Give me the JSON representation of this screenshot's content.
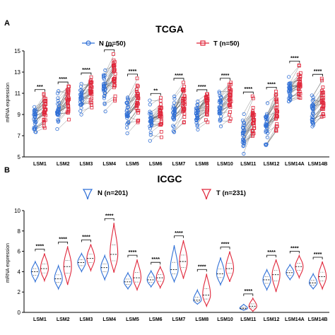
{
  "colors": {
    "normal": "#2f6fd6",
    "tumor": "#e0263a",
    "line": "#333333"
  },
  "chart_data": [
    {
      "type": "paired-scatter",
      "panel": "A",
      "title": "TCGA",
      "ylabel": "mRNA expression",
      "xlabel": "",
      "ylim": [
        5,
        15
      ],
      "yticks": [
        5,
        7,
        9,
        11,
        13,
        15
      ],
      "legend": {
        "placement": "top",
        "items": [
          "N (n=50)",
          "T (n=50)"
        ]
      },
      "categories": [
        "LSM1",
        "LSM2",
        "LSM3",
        "LSM4",
        "LSM5",
        "LSM6",
        "LSM7",
        "LSM8",
        "LSM10",
        "LSM11",
        "LSM12",
        "LSM14A",
        "LSM14B"
      ],
      "series": [
        {
          "name": "N (n=50)",
          "mean": [
            8.6,
            9.3,
            10.4,
            11.3,
            9.1,
            8.4,
            9.2,
            9.2,
            9.7,
            7.2,
            7.8,
            11.5,
            9.2
          ],
          "spread": [
            0.7,
            0.8,
            0.7,
            0.9,
            0.8,
            0.7,
            0.8,
            0.7,
            0.7,
            0.9,
            0.8,
            0.6,
            0.7
          ]
        },
        {
          "name": "T (n=50)",
          "mean": [
            9.4,
            10.2,
            11.1,
            12.5,
            10.1,
            9.0,
            10.3,
            10.1,
            10.6,
            8.7,
            9.1,
            12.1,
            10.2
          ],
          "spread": [
            0.8,
            0.9,
            0.8,
            1.0,
            0.8,
            0.7,
            0.9,
            0.8,
            0.8,
            1.0,
            0.9,
            0.6,
            0.8
          ]
        }
      ],
      "significance": [
        "***",
        "****",
        "****",
        "****",
        "****",
        "**",
        "****",
        "****",
        "****",
        "****",
        "****",
        "****",
        "****"
      ]
    },
    {
      "type": "violin",
      "panel": "B",
      "title": "ICGC",
      "ylabel": "mRNA expression",
      "xlabel": "",
      "ylim": [
        0,
        10
      ],
      "yticks": [
        0,
        2,
        4,
        6,
        8,
        10
      ],
      "legend": {
        "placement": "top",
        "items": [
          "N (n=201)",
          "T (n=231)"
        ]
      },
      "categories": [
        "LSM1",
        "LSM2",
        "LSM3",
        "LSM4",
        "LSM5",
        "LSM6",
        "LSM7",
        "LSM8",
        "LSM10",
        "LSM11",
        "LSM12",
        "LSM14A",
        "LSM14B"
      ],
      "series": [
        {
          "name": "N (n=201)",
          "median": [
            4.0,
            3.3,
            4.9,
            4.4,
            3.0,
            3.2,
            4.2,
            1.2,
            3.8,
            0.4,
            3.2,
            3.9,
            2.9
          ],
          "min": [
            3.0,
            2.3,
            4.0,
            3.2,
            2.3,
            2.5,
            3.0,
            0.8,
            2.7,
            0.2,
            2.2,
            3.2,
            2.3
          ],
          "max": [
            5.0,
            4.6,
            5.8,
            5.6,
            3.9,
            4.1,
            6.6,
            2.2,
            5.4,
            0.8,
            4.2,
            4.7,
            3.8
          ]
        },
        {
          "name": "T (n=231)",
          "median": [
            4.3,
            4.5,
            5.3,
            5.7,
            3.4,
            3.4,
            5.0,
            1.7,
            4.3,
            0.6,
            3.7,
            4.5,
            3.5
          ],
          "min": [
            3.1,
            2.7,
            4.1,
            3.9,
            2.2,
            2.4,
            3.3,
            0.6,
            3.0,
            0.1,
            2.0,
            3.4,
            2.3
          ],
          "max": [
            5.8,
            6.5,
            6.7,
            8.8,
            5.2,
            4.5,
            7.1,
            3.8,
            6.0,
            1.4,
            5.2,
            5.6,
            5.0
          ]
        }
      ],
      "significance": [
        "****",
        "****",
        "****",
        "****",
        "****",
        "****",
        "****",
        "****",
        "****",
        "****",
        "****",
        "****",
        "****"
      ]
    }
  ]
}
